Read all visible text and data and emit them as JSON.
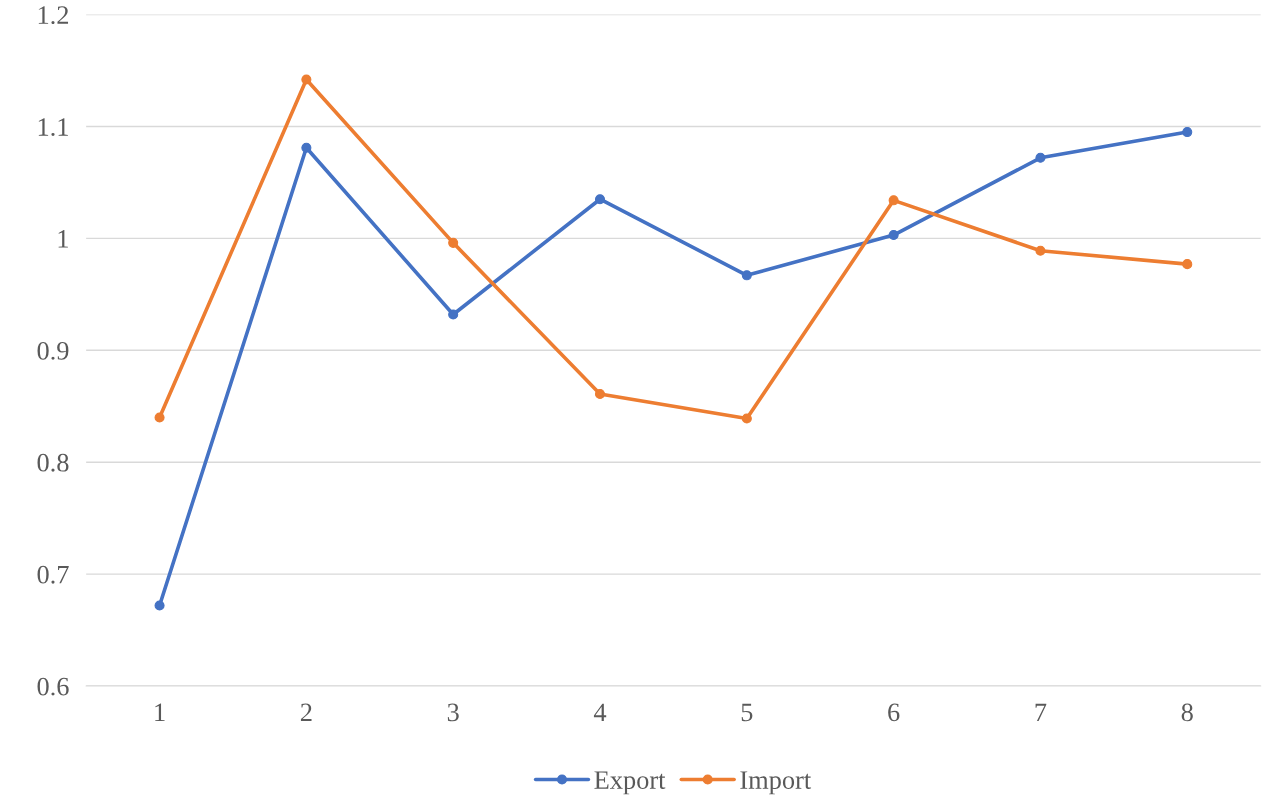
{
  "chart_data": {
    "type": "line",
    "categories": [
      "1",
      "2",
      "3",
      "4",
      "5",
      "6",
      "7",
      "8"
    ],
    "series": [
      {
        "name": "Export",
        "color": "#4472c4",
        "values": [
          0.672,
          1.081,
          0.932,
          1.035,
          0.967,
          1.003,
          1.072,
          1.095
        ]
      },
      {
        "name": "Import",
        "color": "#ed7d31",
        "values": [
          0.84,
          1.142,
          0.996,
          0.861,
          0.839,
          1.034,
          0.989,
          0.977
        ]
      }
    ],
    "ylim": [
      0.6,
      1.2
    ],
    "yticks": [
      0.6,
      0.7,
      0.8,
      0.9,
      1,
      1.1,
      1.2
    ],
    "grid": "y",
    "legend": "bottom",
    "marker": "circle",
    "line_style": "solid"
  }
}
